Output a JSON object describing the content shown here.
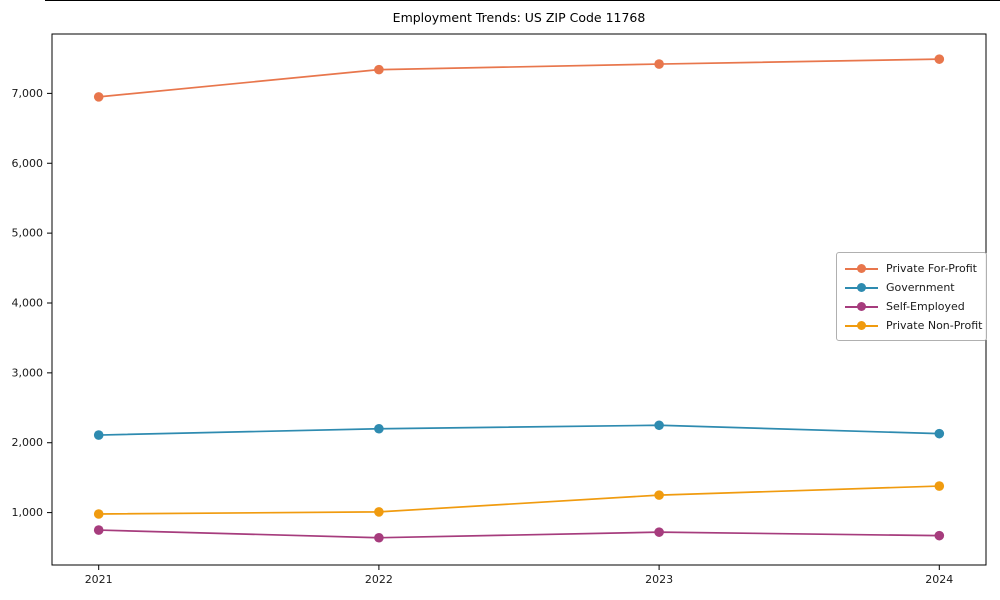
{
  "title": "Employment Trends: US ZIP Code 11768",
  "colors": {
    "private_for_profit": "#E8764C",
    "government": "#2E8BB0",
    "self_employed": "#A63C7D",
    "private_non_profit": "#F09B0F",
    "spine": "#000000",
    "tick_label": "#1a1a1a",
    "legend_border": "#b0b0b0"
  },
  "chart_data": {
    "type": "line",
    "title": "Employment Trends: US ZIP Code 11768",
    "xlabel": "",
    "ylabel": "",
    "categories": [
      "2021",
      "2022",
      "2023",
      "2024"
    ],
    "series": [
      {
        "name": "Private For-Profit",
        "color": "#E8764C",
        "values": [
          6950,
          7340,
          7420,
          7490
        ]
      },
      {
        "name": "Government",
        "color": "#2E8BB0",
        "values": [
          2110,
          2200,
          2250,
          2130
        ]
      },
      {
        "name": "Self-Employed",
        "color": "#A63C7D",
        "values": [
          750,
          640,
          720,
          670
        ]
      },
      {
        "name": "Private Non-Profit",
        "color": "#F09B0F",
        "values": [
          980,
          1010,
          1250,
          1380
        ]
      }
    ],
    "ylim": [
      250,
      7850
    ],
    "yticks": [
      1000,
      2000,
      3000,
      4000,
      5000,
      6000,
      7000
    ],
    "ytick_labels": [
      "1,000",
      "2,000",
      "3,000",
      "4,000",
      "5,000",
      "6,000",
      "7,000"
    ],
    "grid": false,
    "marker": "circle",
    "legend_position": "center-right"
  }
}
